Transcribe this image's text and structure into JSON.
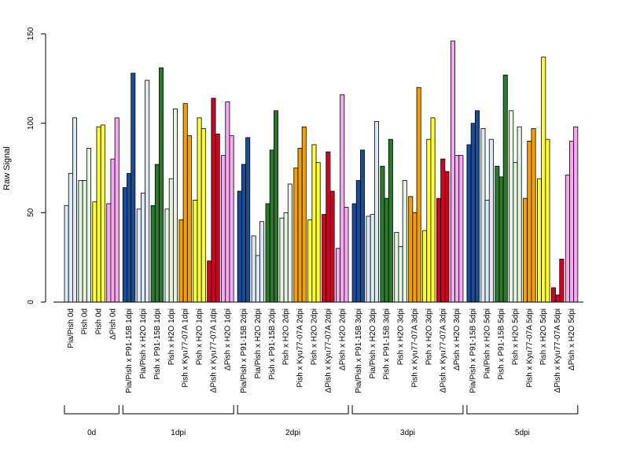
{
  "chart_data": {
    "type": "bar",
    "ylabel": "Raw Signal",
    "ylim": [
      0,
      150
    ],
    "yticks": [
      0,
      50,
      100,
      150
    ],
    "grid": false,
    "series_colors": {
      "pia_pish": "#dbe8f5",
      "pish": "#e5f4e0",
      "pish_plain": "#ffff33",
      "delta_pish": "#f7a8f0",
      "p91_15b": "#1a4d99",
      "p91_15b_green": "#2b7a2b",
      "kyu77": "#f5a000",
      "kyu77_red": "#d40020"
    },
    "groups": [
      {
        "label": "0d",
        "categories": [
          {
            "label": "Pia/Pish 0d",
            "values": [
              54,
              72,
              103
            ],
            "colors": [
              "#dbe8f5",
              "#dbe8f5",
              "#dbe8f5"
            ]
          },
          {
            "label": "Pish 0d",
            "values": [
              68,
              68,
              86
            ],
            "colors": [
              "#e5f4e0",
              "#e5f4e0",
              "#e5f4e0"
            ]
          },
          {
            "label": "Pish 0d",
            "values": [
              56,
              98,
              99
            ],
            "colors": [
              "#ffff33",
              "#ffff33",
              "#ffff33"
            ]
          },
          {
            "label": "ΔPish 0d",
            "values": [
              55,
              80,
              103
            ],
            "colors": [
              "#f7a8f0",
              "#f7a8f0",
              "#f7a8f0"
            ]
          }
        ]
      },
      {
        "label": "1dpi",
        "categories": [
          {
            "label": "Pia/Pish x P91-15B 1dpi",
            "values": [
              64,
              72,
              128
            ],
            "colors": [
              "#1a4d99",
              "#1a4d99",
              "#1a4d99"
            ]
          },
          {
            "label": "Pia/Pish x H2O 1dpi",
            "values": [
              52,
              61,
              124
            ],
            "colors": [
              "#dbe8f5",
              "#dbe8f5",
              "#dbe8f5"
            ]
          },
          {
            "label": "Pish x P91-15B 1dpi",
            "values": [
              54,
              77,
              131
            ],
            "colors": [
              "#2b7a2b",
              "#2b7a2b",
              "#2b7a2b"
            ]
          },
          {
            "label": "Pish x H2O 1dpi",
            "values": [
              52,
              69,
              108
            ],
            "colors": [
              "#e5f4e0",
              "#e5f4e0",
              "#e5f4e0"
            ]
          },
          {
            "label": "Pish x Kyu77-07A 1dpi",
            "values": [
              46,
              111,
              93
            ],
            "colors": [
              "#f5a000",
              "#f5a000",
              "#f5a000"
            ]
          },
          {
            "label": "Pish x H2O 1dpi",
            "values": [
              57,
              103,
              97
            ],
            "colors": [
              "#ffff33",
              "#ffff33",
              "#ffff33"
            ]
          },
          {
            "label": "ΔPish x Kyu77-07A 1dpi",
            "values": [
              23,
              114,
              94
            ],
            "colors": [
              "#d40020",
              "#d40020",
              "#d40020"
            ]
          },
          {
            "label": "ΔPish x H2O 1dpi",
            "values": [
              82,
              112,
              93
            ],
            "colors": [
              "#f7a8f0",
              "#f7a8f0",
              "#f7a8f0"
            ]
          }
        ]
      },
      {
        "label": "2dpi",
        "categories": [
          {
            "label": "Pia/Pish x P91-15B 2dpi",
            "values": [
              62,
              77,
              92
            ],
            "colors": [
              "#1a4d99",
              "#1a4d99",
              "#1a4d99"
            ]
          },
          {
            "label": "Pia/Pish x H2O 2dpi",
            "values": [
              37,
              26,
              45
            ],
            "colors": [
              "#dbe8f5",
              "#dbe8f5",
              "#dbe8f5"
            ]
          },
          {
            "label": "Pish x P91-15B 2dpi",
            "values": [
              55,
              85,
              107
            ],
            "colors": [
              "#2b7a2b",
              "#2b7a2b",
              "#2b7a2b"
            ]
          },
          {
            "label": "Pish x H2O 2dpi",
            "values": [
              47,
              50,
              66
            ],
            "colors": [
              "#e5f4e0",
              "#e5f4e0",
              "#e5f4e0"
            ]
          },
          {
            "label": "Pish x Kyu77-07A 2dpi",
            "values": [
              75,
              86,
              98
            ],
            "colors": [
              "#f5a000",
              "#f5a000",
              "#f5a000"
            ]
          },
          {
            "label": "Pish x H2O 2dpi",
            "values": [
              46,
              88,
              78
            ],
            "colors": [
              "#ffff33",
              "#ffff33",
              "#ffff33"
            ]
          },
          {
            "label": "ΔPish x Kyu77-07A 2dpi",
            "values": [
              49,
              84,
              62
            ],
            "colors": [
              "#d40020",
              "#d40020",
              "#d40020"
            ]
          },
          {
            "label": "ΔPish x H2O 2dpi",
            "values": [
              30,
              116,
              53
            ],
            "colors": [
              "#f7a8f0",
              "#f7a8f0",
              "#f7a8f0"
            ]
          }
        ]
      },
      {
        "label": "3dpi",
        "categories": [
          {
            "label": "Pia/Pish x P91-15B 3dpi",
            "values": [
              55,
              68,
              85
            ],
            "colors": [
              "#1a4d99",
              "#1a4d99",
              "#1a4d99"
            ]
          },
          {
            "label": "Pia/Pish x H2O 3dpi",
            "values": [
              48,
              49,
              101
            ],
            "colors": [
              "#dbe8f5",
              "#dbe8f5",
              "#dbe8f5"
            ]
          },
          {
            "label": "Pish x P91-15B 3dpi",
            "values": [
              76,
              58,
              91
            ],
            "colors": [
              "#2b7a2b",
              "#2b7a2b",
              "#2b7a2b"
            ]
          },
          {
            "label": "Pish x H2O 3dpi",
            "values": [
              39,
              31,
              68
            ],
            "colors": [
              "#e5f4e0",
              "#e5f4e0",
              "#e5f4e0"
            ]
          },
          {
            "label": "Pish x Kyu77-07A 3dpi",
            "values": [
              59,
              50,
              120
            ],
            "colors": [
              "#f5a000",
              "#f5a000",
              "#f5a000"
            ]
          },
          {
            "label": "Pish x H2O 3dpi",
            "values": [
              40,
              91,
              103
            ],
            "colors": [
              "#ffff33",
              "#ffff33",
              "#ffff33"
            ]
          },
          {
            "label": "ΔPish x Kyu77-07A 3dpi",
            "values": [
              58,
              80,
              73
            ],
            "colors": [
              "#d40020",
              "#d40020",
              "#d40020"
            ]
          },
          {
            "label": "ΔPish x H2O 3dpi",
            "values": [
              146,
              82,
              82
            ],
            "colors": [
              "#f7a8f0",
              "#f7a8f0",
              "#f7a8f0"
            ]
          }
        ]
      },
      {
        "label": "5dpi",
        "categories": [
          {
            "label": "Pia/Pish x P91-15B 5dpi",
            "values": [
              88,
              100,
              107
            ],
            "colors": [
              "#1a4d99",
              "#1a4d99",
              "#1a4d99"
            ]
          },
          {
            "label": "Pia/Pish x H2O 5dpi",
            "values": [
              97,
              57,
              91
            ],
            "colors": [
              "#dbe8f5",
              "#dbe8f5",
              "#dbe8f5"
            ]
          },
          {
            "label": "Pish x P91-15B 5dpi",
            "values": [
              76,
              70,
              127
            ],
            "colors": [
              "#2b7a2b",
              "#2b7a2b",
              "#2b7a2b"
            ]
          },
          {
            "label": "Pish x H2O 5dpi",
            "values": [
              107,
              78,
              98
            ],
            "colors": [
              "#e5f4e0",
              "#e5f4e0",
              "#e5f4e0"
            ]
          },
          {
            "label": "Pish x Kyu77-07A 5dpi",
            "values": [
              58,
              90,
              97
            ],
            "colors": [
              "#f5a000",
              "#f5a000",
              "#f5a000"
            ]
          },
          {
            "label": "Pish x H2O 5dpi",
            "values": [
              69,
              137,
              91
            ],
            "colors": [
              "#ffff33",
              "#ffff33",
              "#ffff33"
            ]
          },
          {
            "label": "ΔPish x Kyu77-07A 5dpi",
            "values": [
              8,
              4,
              24
            ],
            "colors": [
              "#d40020",
              "#d40020",
              "#d40020"
            ]
          },
          {
            "label": "ΔPish x H2O 5dpi",
            "values": [
              71,
              90,
              98
            ],
            "colors": [
              "#f7a8f0",
              "#f7a8f0",
              "#f7a8f0"
            ]
          }
        ]
      }
    ]
  }
}
